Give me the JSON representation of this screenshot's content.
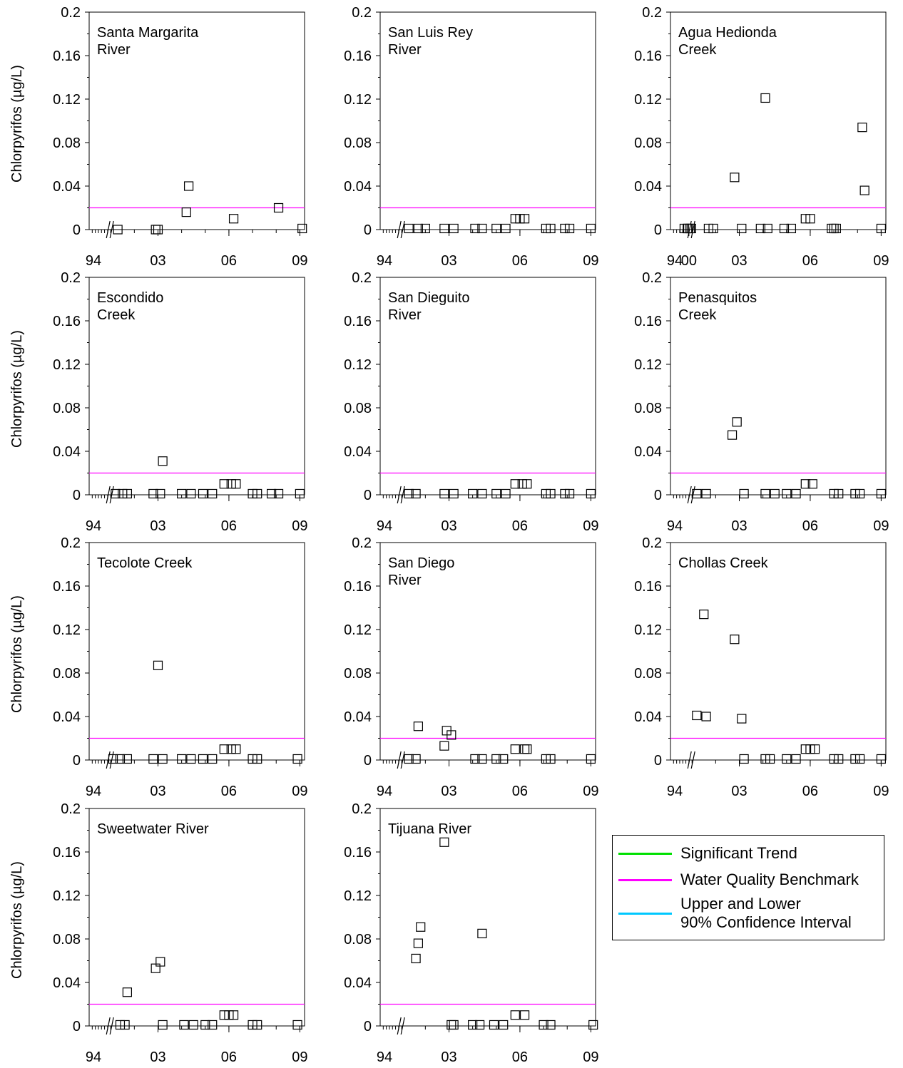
{
  "y_axis_label": "Chlorpyrifos (µg/L)",
  "y_ticks": [
    "0",
    "0.04",
    "0.08",
    "0.12",
    "0.16",
    "0.2"
  ],
  "benchmark": 0.02,
  "colors": {
    "significant_trend": "#00e000",
    "benchmark": "#ff00ff",
    "confidence_interval": "#00c8ff",
    "marker": "#000000"
  },
  "legend": {
    "items": [
      {
        "label": "Significant Trend",
        "color": "#00e000"
      },
      {
        "label": "Water Quality Benchmark",
        "color": "#ff00ff"
      },
      {
        "label": "Upper and Lower\n90% Confidence Interval",
        "color": "#00c8ff"
      }
    ]
  },
  "chart_data": [
    {
      "type": "scatter",
      "title": "Santa Margarita\nRiver",
      "ylim": [
        0,
        0.2
      ],
      "x_ticks": [
        "94",
        "03",
        "06",
        "09"
      ],
      "points": [
        [
          2001.3,
          0
        ],
        [
          2002.9,
          0
        ],
        [
          2003.0,
          0
        ],
        [
          2004.2,
          0.016
        ],
        [
          2004.3,
          0.04
        ],
        [
          2006.2,
          0.01
        ],
        [
          2008.1,
          0.02
        ],
        [
          2009.1,
          0.001
        ]
      ]
    },
    {
      "type": "scatter",
      "title": "San Luis Rey\nRiver",
      "ylim": [
        0,
        0.2
      ],
      "x_ticks": [
        "94",
        "03",
        "06",
        "09"
      ],
      "points": [
        [
          2001.3,
          0.001
        ],
        [
          2001.7,
          0.001
        ],
        [
          2002.0,
          0.001
        ],
        [
          2002.8,
          0.001
        ],
        [
          2003.2,
          0.001
        ],
        [
          2004.1,
          0.001
        ],
        [
          2004.4,
          0.001
        ],
        [
          2005.0,
          0.001
        ],
        [
          2005.4,
          0.001
        ],
        [
          2005.8,
          0.01
        ],
        [
          2006.0,
          0.01
        ],
        [
          2006.2,
          0.01
        ],
        [
          2007.1,
          0.001
        ],
        [
          2007.3,
          0.001
        ],
        [
          2007.9,
          0.001
        ],
        [
          2008.1,
          0.001
        ],
        [
          2009.0,
          0.001
        ]
      ]
    },
    {
      "type": "scatter",
      "title": "Agua Hedionda\nCreek",
      "ylim": [
        0,
        0.2
      ],
      "x_ticks": [
        "94",
        "00",
        "03",
        "06",
        "09"
      ],
      "points": [
        [
          1998.5,
          0.001
        ],
        [
          1999.5,
          0.001
        ],
        [
          1999.7,
          0.001
        ],
        [
          2000.4,
          0.001
        ],
        [
          2000.8,
          0.001
        ],
        [
          2001.7,
          0.001
        ],
        [
          2001.9,
          0.001
        ],
        [
          2002.8,
          0.048
        ],
        [
          2003.1,
          0.001
        ],
        [
          2003.9,
          0.001
        ],
        [
          2004.1,
          0.121
        ],
        [
          2004.2,
          0.001
        ],
        [
          2004.9,
          0.001
        ],
        [
          2005.2,
          0.001
        ],
        [
          2005.8,
          0.01
        ],
        [
          2006.0,
          0.01
        ],
        [
          2006.9,
          0.001
        ],
        [
          2007.0,
          0.001
        ],
        [
          2007.1,
          0.001
        ],
        [
          2008.2,
          0.094
        ],
        [
          2008.3,
          0.036
        ],
        [
          2009.0,
          0.001
        ]
      ]
    },
    {
      "type": "scatter",
      "title": "Escondido\nCreek",
      "ylim": [
        0,
        0.2
      ],
      "x_ticks": [
        "94",
        "03",
        "06",
        "09"
      ],
      "points": [
        [
          2001.2,
          0.001
        ],
        [
          2001.5,
          0.001
        ],
        [
          2001.7,
          0.001
        ],
        [
          2002.8,
          0.001
        ],
        [
          2003.1,
          0.001
        ],
        [
          2003.2,
          0.031
        ],
        [
          2004.0,
          0.001
        ],
        [
          2004.4,
          0.001
        ],
        [
          2004.9,
          0.001
        ],
        [
          2005.3,
          0.001
        ],
        [
          2005.8,
          0.01
        ],
        [
          2006.1,
          0.01
        ],
        [
          2006.3,
          0.01
        ],
        [
          2007.0,
          0.001
        ],
        [
          2007.2,
          0.001
        ],
        [
          2007.8,
          0.001
        ],
        [
          2008.1,
          0.001
        ],
        [
          2009.0,
          0.001
        ]
      ]
    },
    {
      "type": "scatter",
      "title": "San Dieguito\nRiver",
      "ylim": [
        0,
        0.2
      ],
      "x_ticks": [
        "94",
        "03",
        "06",
        "09"
      ],
      "points": [
        [
          2001.3,
          0.001
        ],
        [
          2001.6,
          0.001
        ],
        [
          2002.8,
          0.001
        ],
        [
          2003.2,
          0.001
        ],
        [
          2004.0,
          0.001
        ],
        [
          2004.4,
          0.001
        ],
        [
          2005.0,
          0.001
        ],
        [
          2005.4,
          0.001
        ],
        [
          2005.8,
          0.01
        ],
        [
          2006.1,
          0.01
        ],
        [
          2006.3,
          0.01
        ],
        [
          2007.1,
          0.001
        ],
        [
          2007.3,
          0.001
        ],
        [
          2007.9,
          0.001
        ],
        [
          2008.1,
          0.001
        ],
        [
          2009.0,
          0.001
        ]
      ]
    },
    {
      "type": "scatter",
      "title": "Penasquitos\nCreek",
      "ylim": [
        0,
        0.2
      ],
      "x_ticks": [
        "94",
        "03",
        "06",
        "09"
      ],
      "points": [
        [
          2001.2,
          0.001
        ],
        [
          2001.6,
          0.001
        ],
        [
          2002.7,
          0.055
        ],
        [
          2002.9,
          0.067
        ],
        [
          2003.2,
          0.001
        ],
        [
          2004.1,
          0.001
        ],
        [
          2004.5,
          0.001
        ],
        [
          2005.0,
          0.001
        ],
        [
          2005.4,
          0.001
        ],
        [
          2005.8,
          0.01
        ],
        [
          2006.1,
          0.01
        ],
        [
          2007.0,
          0.001
        ],
        [
          2007.2,
          0.001
        ],
        [
          2007.9,
          0.001
        ],
        [
          2008.1,
          0.001
        ],
        [
          2009.0,
          0.001
        ]
      ]
    },
    {
      "type": "scatter",
      "title": "Tecolote Creek",
      "ylim": [
        0,
        0.2
      ],
      "x_ticks": [
        "94",
        "03",
        "06",
        "09"
      ],
      "points": [
        [
          2001.1,
          0.001
        ],
        [
          2001.4,
          0.001
        ],
        [
          2001.7,
          0.001
        ],
        [
          2002.8,
          0.001
        ],
        [
          2003.0,
          0.087
        ],
        [
          2003.2,
          0.001
        ],
        [
          2004.0,
          0.001
        ],
        [
          2004.4,
          0.001
        ],
        [
          2004.9,
          0.001
        ],
        [
          2005.3,
          0.001
        ],
        [
          2005.8,
          0.01
        ],
        [
          2006.1,
          0.01
        ],
        [
          2006.3,
          0.01
        ],
        [
          2007.0,
          0.001
        ],
        [
          2007.2,
          0.001
        ],
        [
          2008.9,
          0.001
        ]
      ]
    },
    {
      "type": "scatter",
      "title": "San Diego\nRiver",
      "ylim": [
        0,
        0.2
      ],
      "x_ticks": [
        "94",
        "03",
        "06",
        "09"
      ],
      "points": [
        [
          2001.3,
          0.001
        ],
        [
          2001.6,
          0.001
        ],
        [
          2001.7,
          0.031
        ],
        [
          2002.8,
          0.013
        ],
        [
          2002.9,
          0.027
        ],
        [
          2003.1,
          0.023
        ],
        [
          2004.1,
          0.001
        ],
        [
          2004.4,
          0.001
        ],
        [
          2005.0,
          0.001
        ],
        [
          2005.3,
          0.001
        ],
        [
          2005.8,
          0.01
        ],
        [
          2006.2,
          0.01
        ],
        [
          2006.3,
          0.01
        ],
        [
          2007.1,
          0.001
        ],
        [
          2007.3,
          0.001
        ],
        [
          2009.0,
          0.001
        ]
      ]
    },
    {
      "type": "scatter",
      "title": "Chollas Creek",
      "ylim": [
        0,
        0.2
      ],
      "x_ticks": [
        "94",
        "03",
        "06",
        "09"
      ],
      "points": [
        [
          2001.2,
          0.041
        ],
        [
          2001.5,
          0.134
        ],
        [
          2001.6,
          0.04
        ],
        [
          2002.8,
          0.111
        ],
        [
          2003.1,
          0.038
        ],
        [
          2003.2,
          0.001
        ],
        [
          2004.1,
          0.001
        ],
        [
          2004.3,
          0.001
        ],
        [
          2005.0,
          0.001
        ],
        [
          2005.4,
          0.001
        ],
        [
          2005.8,
          0.01
        ],
        [
          2006.0,
          0.01
        ],
        [
          2006.2,
          0.01
        ],
        [
          2007.0,
          0.001
        ],
        [
          2007.2,
          0.001
        ],
        [
          2007.9,
          0.001
        ],
        [
          2008.1,
          0.001
        ],
        [
          2009.0,
          0.001
        ]
      ]
    },
    {
      "type": "scatter",
      "title": "Sweetwater River",
      "ylim": [
        0,
        0.2
      ],
      "x_ticks": [
        "94",
        "03",
        "06",
        "09"
      ],
      "points": [
        [
          2001.4,
          0.001
        ],
        [
          2001.6,
          0.001
        ],
        [
          2001.7,
          0.031
        ],
        [
          2002.9,
          0.053
        ],
        [
          2003.1,
          0.059
        ],
        [
          2003.2,
          0.001
        ],
        [
          2004.1,
          0.001
        ],
        [
          2004.5,
          0.001
        ],
        [
          2005.0,
          0.001
        ],
        [
          2005.3,
          0.001
        ],
        [
          2005.8,
          0.01
        ],
        [
          2006.0,
          0.01
        ],
        [
          2006.2,
          0.01
        ],
        [
          2007.0,
          0.001
        ],
        [
          2007.2,
          0.001
        ],
        [
          2008.9,
          0.001
        ]
      ]
    },
    {
      "type": "scatter",
      "title": "Tijuana River",
      "ylim": [
        0,
        0.2
      ],
      "x_ticks": [
        "94",
        "03",
        "06",
        "09"
      ],
      "points": [
        [
          2001.6,
          0.062
        ],
        [
          2001.7,
          0.076
        ],
        [
          2001.8,
          0.091
        ],
        [
          2002.8,
          0.169
        ],
        [
          2003.1,
          0.001
        ],
        [
          2003.2,
          0.001
        ],
        [
          2004.0,
          0.001
        ],
        [
          2004.3,
          0.001
        ],
        [
          2004.4,
          0.085
        ],
        [
          2004.9,
          0.001
        ],
        [
          2005.3,
          0.001
        ],
        [
          2005.8,
          0.01
        ],
        [
          2006.2,
          0.01
        ],
        [
          2007.0,
          0.001
        ],
        [
          2007.3,
          0.001
        ],
        [
          2009.1,
          0.001
        ]
      ]
    }
  ]
}
